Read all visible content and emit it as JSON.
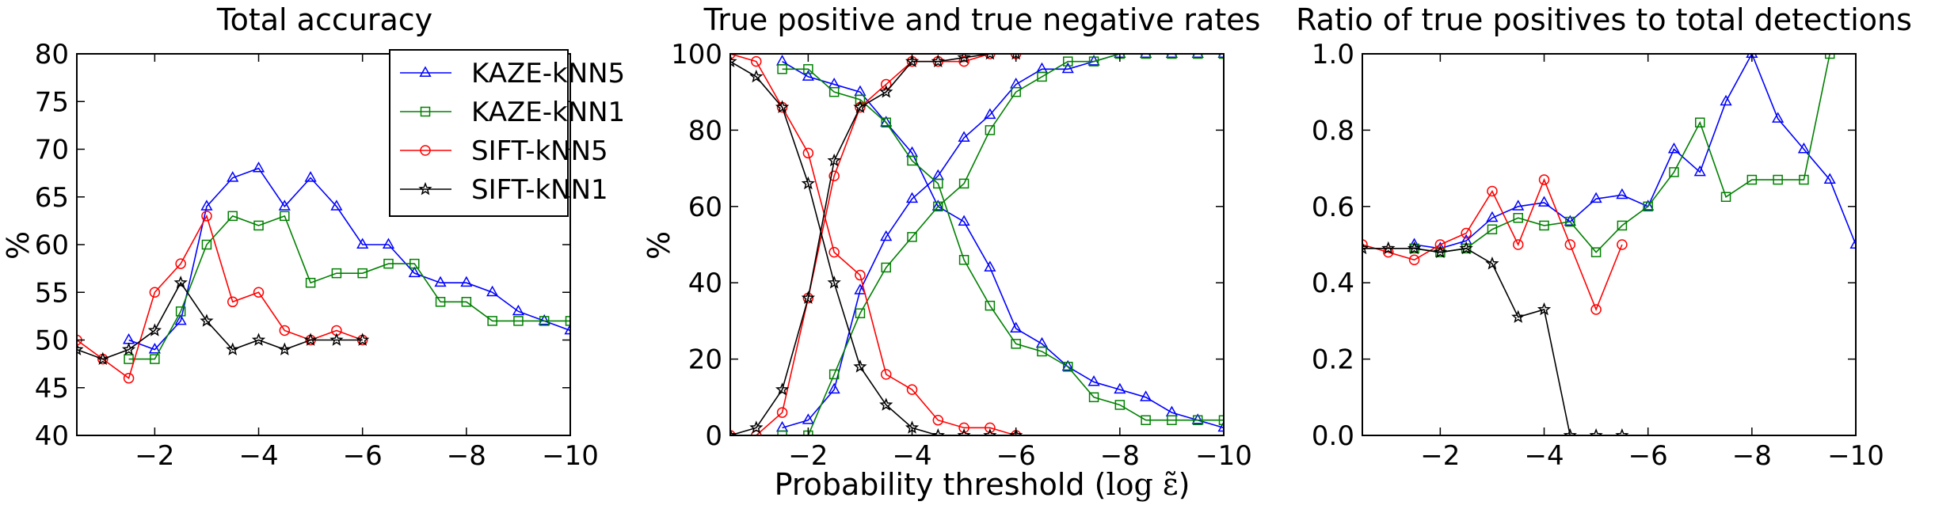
{
  "colors": {
    "KAZE-kNN5": "#0000ff",
    "KAZE-kNN1": "#008000",
    "SIFT-kNN5": "#ff0000",
    "SIFT-kNN1": "#000000"
  },
  "x_ticks": [
    "−2",
    "−4",
    "−6",
    "−8",
    "−10"
  ],
  "xlabel_text": "Probability threshold (",
  "xlabel_math": "log ε̃",
  "xlabel_close": ")",
  "chart_data": [
    {
      "type": "line",
      "title": "Total accuracy",
      "ylabel": "%",
      "xlim": [
        -0.5,
        -10
      ],
      "ylim": [
        40,
        80
      ],
      "y_ticks": [
        "40",
        "45",
        "50",
        "55",
        "60",
        "65",
        "70",
        "75",
        "80"
      ],
      "legend": {
        "placement": "top-right",
        "entries": [
          "KAZE-kNN5",
          "KAZE-kNN1",
          "SIFT-kNN5",
          "SIFT-kNN1"
        ]
      },
      "series": [
        {
          "name": "KAZE-kNN5",
          "marker": "triangle",
          "x": [
            -1.5,
            -2,
            -2.5,
            -3,
            -3.5,
            -4,
            -4.5,
            -5,
            -5.5,
            -6,
            -6.5,
            -7,
            -7.5,
            -8,
            -8.5,
            -9,
            -9.5,
            -10
          ],
          "y": [
            50,
            49,
            52,
            64,
            67,
            68,
            64,
            67,
            64,
            60,
            60,
            57,
            56,
            56,
            55,
            53,
            52,
            51
          ]
        },
        {
          "name": "KAZE-kNN1",
          "marker": "square",
          "x": [
            -1.5,
            -2,
            -2.5,
            -3,
            -3.5,
            -4,
            -4.5,
            -5,
            -5.5,
            -6,
            -6.5,
            -7,
            -7.5,
            -8,
            -8.5,
            -9,
            -9.5,
            -10
          ],
          "y": [
            48,
            48,
            53,
            60,
            63,
            62,
            63,
            56,
            57,
            57,
            58,
            58,
            54,
            54,
            52,
            52,
            52,
            52
          ]
        },
        {
          "name": "SIFT-kNN5",
          "marker": "circle",
          "x": [
            -0.5,
            -1,
            -1.5,
            -2,
            -2.5,
            -3,
            -3.5,
            -4,
            -4.5,
            -5,
            -5.5,
            -6
          ],
          "y": [
            50,
            48,
            46,
            55,
            58,
            63,
            54,
            55,
            51,
            50,
            51,
            50
          ]
        },
        {
          "name": "SIFT-kNN1",
          "marker": "star",
          "x": [
            -0.5,
            -1,
            -1.5,
            -2,
            -2.5,
            -3,
            -3.5,
            -4,
            -4.5,
            -5,
            -5.5,
            -6
          ],
          "y": [
            49,
            48,
            49,
            51,
            56,
            52,
            49,
            50,
            49,
            50,
            50,
            50
          ]
        }
      ]
    },
    {
      "type": "line",
      "title": "True positive and true negative rates",
      "ylabel": "%",
      "xlim": [
        -0.5,
        -10
      ],
      "ylim": [
        0,
        100
      ],
      "y_ticks": [
        "0",
        "20",
        "40",
        "60",
        "80",
        "100"
      ],
      "series": [
        {
          "name": "KAZE-kNN5 true positive",
          "marker": "triangle",
          "color_key": "KAZE-kNN5",
          "x": [
            -1.5,
            -2,
            -2.5,
            -3,
            -3.5,
            -4,
            -4.5,
            -5,
            -5.5,
            -6,
            -6.5,
            -7,
            -7.5,
            -8,
            -8.5,
            -9,
            -9.5,
            -10
          ],
          "y": [
            2,
            4,
            12,
            38,
            52,
            62,
            68,
            78,
            84,
            92,
            96,
            96,
            98,
            100,
            100,
            100,
            100,
            100
          ]
        },
        {
          "name": "KAZE-kNN5 true negative",
          "marker": "triangle",
          "color_key": "KAZE-kNN5",
          "x": [
            -1.5,
            -2,
            -2.5,
            -3,
            -3.5,
            -4,
            -4.5,
            -5,
            -5.5,
            -6,
            -6.5,
            -7,
            -7.5,
            -8,
            -8.5,
            -9,
            -9.5,
            -10
          ],
          "y": [
            98,
            94,
            92,
            90,
            82,
            74,
            60,
            56,
            44,
            28,
            24,
            18,
            14,
            12,
            10,
            6,
            4,
            2
          ]
        },
        {
          "name": "KAZE-kNN1 true positive",
          "marker": "square",
          "color_key": "KAZE-kNN1",
          "x": [
            -1.5,
            -2,
            -2.5,
            -3,
            -3.5,
            -4,
            -4.5,
            -5,
            -5.5,
            -6,
            -6.5,
            -7,
            -7.5,
            -8,
            -8.5,
            -9,
            -9.5,
            -10
          ],
          "y": [
            0,
            0,
            16,
            32,
            44,
            52,
            60,
            66,
            80,
            90,
            94,
            98,
            98,
            100,
            100,
            100,
            100,
            100
          ]
        },
        {
          "name": "KAZE-kNN1 true negative",
          "marker": "square",
          "color_key": "KAZE-kNN1",
          "x": [
            -1.5,
            -2,
            -2.5,
            -3,
            -3.5,
            -4,
            -4.5,
            -5,
            -5.5,
            -6,
            -6.5,
            -7,
            -7.5,
            -8,
            -8.5,
            -9,
            -9.5,
            -10
          ],
          "y": [
            96,
            96,
            90,
            88,
            82,
            72,
            66,
            46,
            34,
            24,
            22,
            18,
            10,
            8,
            4,
            4,
            4,
            4
          ]
        },
        {
          "name": "SIFT-kNN5 true positive",
          "marker": "circle",
          "color_key": "SIFT-kNN5",
          "x": [
            -0.5,
            -1,
            -1.5,
            -2,
            -2.5,
            -3,
            -3.5,
            -4,
            -4.5,
            -5,
            -5.5,
            -6
          ],
          "y": [
            0,
            0,
            6,
            36,
            68,
            86,
            92,
            98,
            98,
            98,
            100,
            100
          ]
        },
        {
          "name": "SIFT-kNN5 true negative",
          "marker": "circle",
          "color_key": "SIFT-kNN5",
          "x": [
            -0.5,
            -1,
            -1.5,
            -2,
            -2.5,
            -3,
            -3.5,
            -4,
            -4.5,
            -5,
            -5.5,
            -6
          ],
          "y": [
            100,
            98,
            86,
            74,
            48,
            42,
            16,
            12,
            4,
            2,
            2,
            0
          ]
        },
        {
          "name": "SIFT-kNN1 true positive",
          "marker": "star",
          "color_key": "SIFT-kNN1",
          "x": [
            -0.5,
            -1,
            -1.5,
            -2,
            -2.5,
            -3,
            -3.5,
            -4,
            -4.5,
            -5,
            -5.5,
            -6
          ],
          "y": [
            0,
            2,
            12,
            36,
            72,
            86,
            90,
            98,
            98,
            99,
            100,
            100
          ]
        },
        {
          "name": "SIFT-kNN1 true negative",
          "marker": "star",
          "color_key": "SIFT-kNN1",
          "x": [
            -0.5,
            -1,
            -1.5,
            -2,
            -2.5,
            -3,
            -3.5,
            -4,
            -4.5,
            -5,
            -5.5,
            -6
          ],
          "y": [
            98,
            94,
            86,
            66,
            40,
            18,
            8,
            2,
            0,
            0,
            0,
            0
          ]
        }
      ]
    },
    {
      "type": "line",
      "title": "Ratio of true positives to total detections",
      "ylabel": "",
      "xlim": [
        -0.5,
        -10
      ],
      "ylim": [
        0,
        1
      ],
      "y_ticks": [
        "0.0",
        "0.2",
        "0.4",
        "0.6",
        "0.8",
        "1.0"
      ],
      "series": [
        {
          "name": "KAZE-kNN5",
          "marker": "triangle",
          "x": [
            -1.5,
            -2,
            -2.5,
            -3,
            -3.5,
            -4,
            -4.5,
            -5,
            -5.5,
            -6,
            -6.5,
            -7,
            -7.5,
            -8,
            -8.5,
            -9,
            -9.5,
            -10
          ],
          "y": [
            0.5,
            0.49,
            0.51,
            0.57,
            0.6,
            0.61,
            0.56,
            0.62,
            0.63,
            0.6,
            0.75,
            0.69,
            0.875,
            1.0,
            0.83,
            0.75,
            0.67,
            0.5
          ]
        },
        {
          "name": "KAZE-kNN1",
          "marker": "square",
          "x": [
            -1.5,
            -2,
            -2.5,
            -3,
            -3.5,
            -4,
            -4.5,
            -5,
            -5.5,
            -6,
            -6.5,
            -7,
            -7.5,
            -8,
            -8.5,
            -9,
            -9.5
          ],
          "y": [
            0.49,
            0.48,
            0.49,
            0.54,
            0.57,
            0.55,
            0.56,
            0.48,
            0.55,
            0.6,
            0.69,
            0.82,
            0.625,
            0.67,
            0.67,
            0.67,
            1.0
          ]
        },
        {
          "name": "SIFT-kNN5",
          "marker": "circle",
          "x": [
            -0.5,
            -1,
            -1.5,
            -2,
            -2.5,
            -3,
            -3.5,
            -4,
            -4.5,
            -5,
            -5.5
          ],
          "y": [
            0.5,
            0.48,
            0.46,
            0.5,
            0.53,
            0.64,
            0.5,
            0.67,
            0.5,
            0.33,
            0.5
          ]
        },
        {
          "name": "SIFT-kNN1",
          "marker": "star",
          "x": [
            -0.5,
            -1,
            -1.5,
            -2,
            -2.5,
            -3,
            -3.5,
            -4,
            -4.5,
            -5,
            -5.5
          ],
          "y": [
            0.49,
            0.49,
            0.49,
            0.48,
            0.49,
            0.45,
            0.31,
            0.33,
            0.0,
            0.0,
            0.0
          ]
        }
      ]
    }
  ]
}
